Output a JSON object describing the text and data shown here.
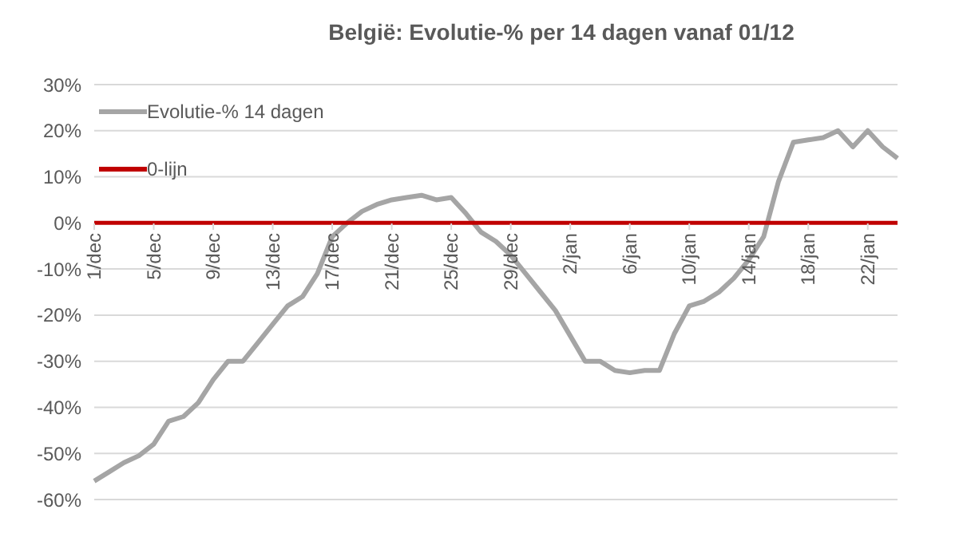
{
  "chart_data": {
    "type": "line",
    "title": "België:  Evolutie-% per 14 dagen vanaf 01/12",
    "categories": [
      "1/dec",
      null,
      null,
      null,
      "5/dec",
      null,
      null,
      null,
      "9/dec",
      null,
      null,
      null,
      "13/dec",
      null,
      null,
      null,
      "17/dec",
      null,
      null,
      null,
      "21/dec",
      null,
      null,
      null,
      "25/dec",
      null,
      null,
      null,
      "29/dec",
      null,
      null,
      null,
      "2/jan",
      null,
      null,
      null,
      "6/jan",
      null,
      null,
      null,
      "10/jan",
      null,
      null,
      null,
      "14/jan",
      null,
      null,
      null,
      "18/jan",
      null,
      null,
      null,
      "22/jan",
      null,
      null
    ],
    "series": [
      {
        "name": "Evolutie-% 14 dagen",
        "color": "#a5a5a5",
        "values": [
          -56,
          -54,
          -52,
          -50.5,
          -48,
          -43,
          -42,
          -39,
          -34,
          -30,
          -30,
          -26,
          -22,
          -18,
          -16,
          -11,
          -3,
          0,
          2.5,
          4,
          5,
          5.5,
          6,
          5,
          5.5,
          2,
          -2,
          -4,
          -7,
          -11,
          -15,
          -19,
          -24.5,
          -30,
          -30,
          -32,
          -32.5,
          -32,
          -32,
          -24,
          -18,
          -17,
          -15,
          -12,
          -8,
          -3,
          9,
          17.5,
          18,
          18.5,
          20,
          16.5,
          20,
          16.5,
          14
        ]
      },
      {
        "name": "0-lijn",
        "color": "#c00000",
        "values": [
          0,
          0,
          0,
          0,
          0,
          0,
          0,
          0,
          0,
          0,
          0,
          0,
          0,
          0,
          0,
          0,
          0,
          0,
          0,
          0,
          0,
          0,
          0,
          0,
          0,
          0,
          0,
          0,
          0,
          0,
          0,
          0,
          0,
          0,
          0,
          0,
          0,
          0,
          0,
          0,
          0,
          0,
          0,
          0,
          0,
          0,
          0,
          0,
          0,
          0,
          0,
          0,
          0,
          0,
          0
        ]
      }
    ],
    "ylim": [
      -60,
      30
    ],
    "yticks": [
      {
        "value": -60,
        "label": "-60%"
      },
      {
        "value": -50,
        "label": "-50%"
      },
      {
        "value": -40,
        "label": "-40%"
      },
      {
        "value": -30,
        "label": "-30%"
      },
      {
        "value": -20,
        "label": "-20%"
      },
      {
        "value": -10,
        "label": "-10%"
      },
      {
        "value": 0,
        "label": "0%"
      },
      {
        "value": 10,
        "label": "10%"
      },
      {
        "value": 20,
        "label": "20%"
      },
      {
        "value": 30,
        "label": "30%"
      }
    ],
    "grid": "y",
    "legend": "top left",
    "marker": "none",
    "line_style": "solid"
  }
}
